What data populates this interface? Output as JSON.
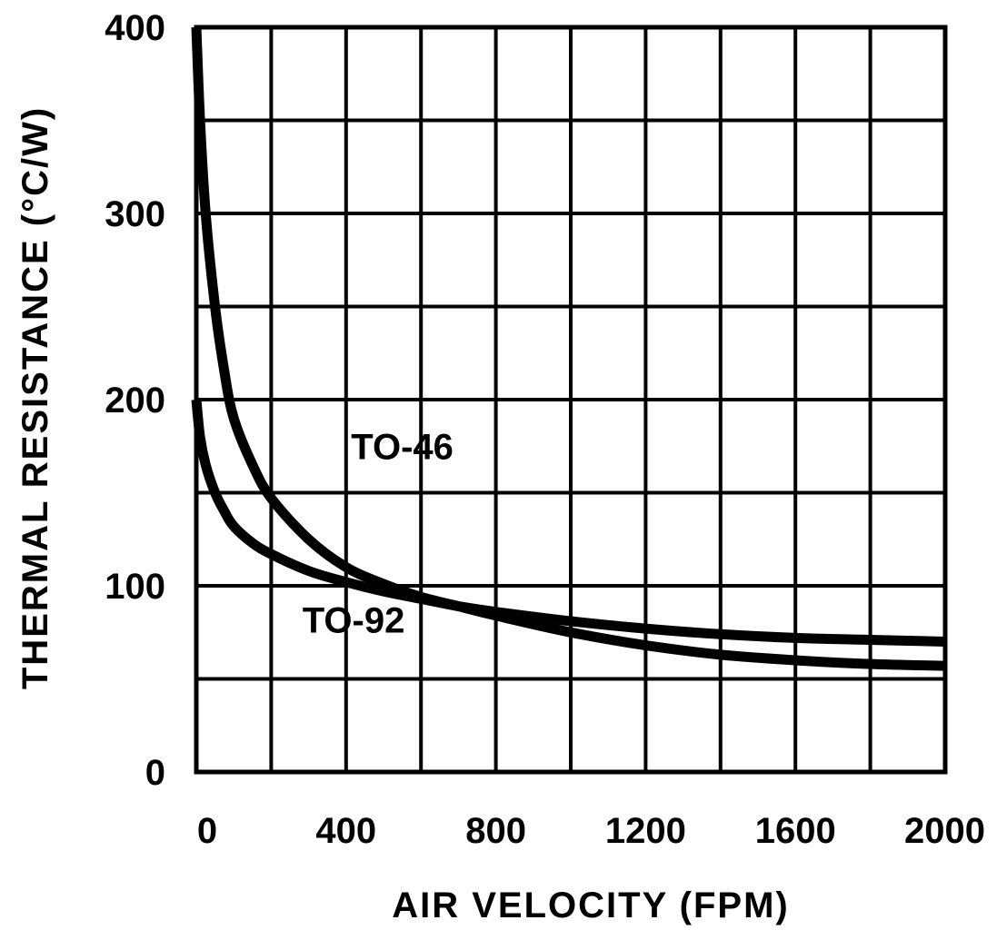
{
  "chart_data": {
    "type": "line",
    "title": "",
    "xlabel": "AIR VELOCITY (FPM)",
    "ylabel": "THERMAL RESISTANCE (°C/W)",
    "xlim": [
      0,
      2000
    ],
    "ylim": [
      0,
      400
    ],
    "x_ticks": [
      0,
      400,
      800,
      1200,
      1600,
      2000
    ],
    "x_tick_labels": [
      "0",
      "400",
      "800",
      "1200",
      "1600",
      "2000"
    ],
    "y_ticks": [
      0,
      100,
      200,
      300,
      400
    ],
    "y_tick_labels": [
      "0",
      "100",
      "200",
      "300",
      "400"
    ],
    "x_grid_step": 200,
    "y_grid_step": 50,
    "grid": true,
    "line_color": "#000000",
    "series": [
      {
        "name": "TO-46",
        "x": [
          0,
          10,
          25,
          50,
          75,
          100,
          150,
          200,
          300,
          400,
          500,
          600,
          700,
          800,
          1000,
          1200,
          1400,
          1600,
          1800,
          2000
        ],
        "y": [
          400,
          350,
          300,
          250,
          215,
          190,
          165,
          147,
          125,
          110,
          101,
          94,
          89,
          84,
          75,
          68,
          63,
          60,
          58,
          57
        ]
      },
      {
        "name": "TO-92",
        "x": [
          0,
          10,
          25,
          50,
          75,
          100,
          150,
          200,
          300,
          400,
          500,
          600,
          700,
          800,
          1000,
          1200,
          1400,
          1600,
          1800,
          2000
        ],
        "y": [
          200,
          180,
          165,
          150,
          140,
          132,
          123,
          117,
          108,
          102,
          97,
          93,
          89,
          86,
          81,
          77,
          74,
          72,
          71,
          70
        ]
      }
    ],
    "annotations": [
      {
        "text": "TO-46",
        "series": "TO-46",
        "x": 550,
        "y": 168
      },
      {
        "text": "TO-92",
        "series": "TO-92",
        "x": 420,
        "y": 75
      }
    ]
  }
}
